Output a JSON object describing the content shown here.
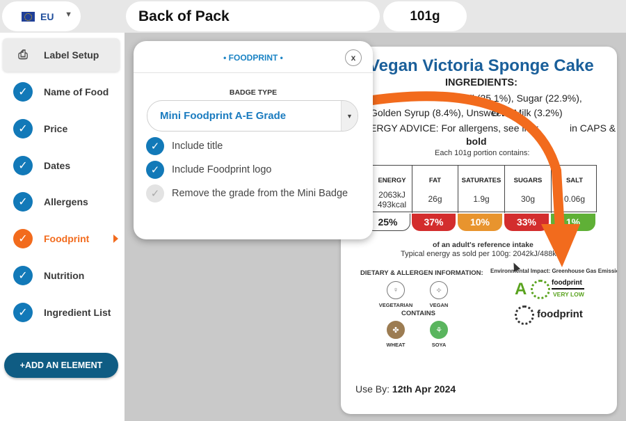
{
  "topbar": {
    "region": "EU",
    "pack_name": "Back of Pack",
    "weight": "101g"
  },
  "sidebar": {
    "items": [
      {
        "label": "Label Setup",
        "state": "selected"
      },
      {
        "label": "Name of Food",
        "state": "done"
      },
      {
        "label": "Price",
        "state": "done"
      },
      {
        "label": "Dates",
        "state": "done"
      },
      {
        "label": "Allergens",
        "state": "done"
      },
      {
        "label": "Foodprint",
        "state": "active"
      },
      {
        "label": "Nutrition",
        "state": "done"
      },
      {
        "label": "Ingredient List",
        "state": "done"
      }
    ],
    "add_button": "+ADD AN ELEMENT"
  },
  "panel": {
    "title": "• FOODPRINT •",
    "close": "x",
    "badge_type_label": "BADGE TYPE",
    "badge_type_value": "Mini Foodprint A-E Grade",
    "options": [
      {
        "label": "Include title",
        "checked": true
      },
      {
        "label": "Include Foodprint logo",
        "checked": true
      },
      {
        "label": "Remove the grade from the Mini Badge",
        "checked": false
      }
    ]
  },
  "label": {
    "food_name": "Vegan Victoria Sponge Cake",
    "ingredients_heading": "INGREDIENTS:",
    "ingredients_line1": "le Oil (25.1%), Sugar (22.9%),",
    "ingredients_line2a": "Golden Syrup (8.4%), Unsweete",
    "ingredients_line2b": "OYA Milk (3.2%)",
    "allergy_line1a": "ERGY ADVICE: For allergens, see ingr",
    "allergy_line1b": "in CAPS &",
    "allergy_line2": "bold",
    "portion_text": "Each 101g portion contains:",
    "nutrition": [
      {
        "name": "ENERGY",
        "value1": "2063kJ",
        "value2": "493kcal",
        "ri": "25%",
        "color": "#ffffff"
      },
      {
        "name": "FAT",
        "value1": "26g",
        "value2": "",
        "ri": "37%",
        "color": "#d32d2d"
      },
      {
        "name": "SATURATES",
        "value1": "1.9g",
        "value2": "",
        "ri": "10%",
        "color": "#e8942e"
      },
      {
        "name": "SUGARS",
        "value1": "30g",
        "value2": "",
        "ri": "33%",
        "color": "#d32d2d"
      },
      {
        "name": "SALT",
        "value1": "0.06g",
        "value2": "",
        "ri": "1%",
        "color": "#5fb036"
      }
    ],
    "reference_intake": "of an adult's reference intake",
    "typical_energy": "Typical energy as sold per 100g: 2042kJ/488k",
    "dietary_heading": "DIETARY & ALLERGEN INFORMATION:",
    "diet_badges": [
      {
        "label": "VEGETARIAN",
        "glyph": "♀"
      },
      {
        "label": "VEGAN",
        "glyph": "✧"
      }
    ],
    "contains_heading": "CONTAINS",
    "allergen_badges": [
      {
        "label": "WHEAT",
        "glyph": "✤"
      },
      {
        "label": "SOYA",
        "glyph": "⚘"
      }
    ],
    "env_heading": "Environmental Impact: Greenhouse Gas Emissions",
    "foodprint_grade": "A",
    "foodprint_brand": "foodprint",
    "foodprint_level": "VERY LOW",
    "foodprint_logo_text": "foodprint",
    "use_by_label": "Use By:",
    "use_by_date": "12th Apr 2024"
  },
  "colors": {
    "accent_blue": "#1279b8",
    "accent_orange": "#f26b1d",
    "title_blue": "#1a5f9a",
    "grade_green": "#5aa31f"
  }
}
